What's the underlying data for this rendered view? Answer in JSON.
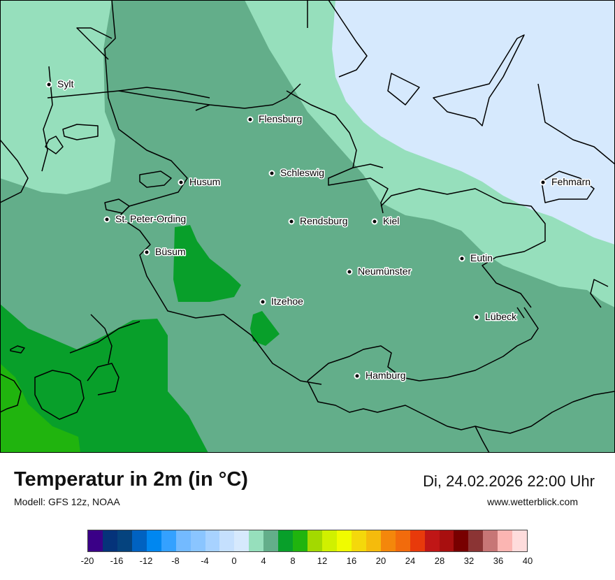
{
  "map": {
    "cities": [
      {
        "name": "Sylt",
        "id": "city-sylt"
      },
      {
        "name": "Flensburg",
        "id": "city-flensburg"
      },
      {
        "name": "Schleswig",
        "id": "city-schleswig"
      },
      {
        "name": "Husum",
        "id": "city-husum"
      },
      {
        "name": "Fehmarn",
        "id": "city-fehmarn"
      },
      {
        "name": "St. Peter-Ording",
        "id": "city-st-peter-ording"
      },
      {
        "name": "Rendsburg",
        "id": "city-rendsburg"
      },
      {
        "name": "Kiel",
        "id": "city-kiel"
      },
      {
        "name": "Büsum",
        "id": "city-buesum"
      },
      {
        "name": "Eutin",
        "id": "city-eutin"
      },
      {
        "name": "Neumünster",
        "id": "city-neumuenster"
      },
      {
        "name": "Itzehoe",
        "id": "city-itzehoe"
      },
      {
        "name": "Lübeck",
        "id": "city-luebeck"
      },
      {
        "name": "Hamburg",
        "id": "city-hamburg"
      }
    ],
    "temperature_zone_colors": {
      "band_0_2": "#d6e9fd",
      "band_2_4": "#96dfbc",
      "band_4_6": "#63ae8a",
      "band_6_8": "#089f2a",
      "band_8_10": "#20b40e"
    }
  },
  "footer": {
    "title": "Temperatur in 2m (in °C)",
    "model": "Modell: GFS 12z, NOAA",
    "datetime": "Di, 24.02.2026 22:00 Uhr",
    "website": "www.wetterblick.com"
  },
  "legend": {
    "colors": [
      "#3a0087",
      "#05337a",
      "#05437e",
      "#0062c1",
      "#0087f0",
      "#34a1ff",
      "#73baff",
      "#8ac5ff",
      "#a7d2ff",
      "#c5e0fe",
      "#d6e9fd",
      "#96dfbc",
      "#63ae8a",
      "#089f2a",
      "#20b40e",
      "#a3d900",
      "#d0f000",
      "#f0fb00",
      "#f4d80b",
      "#f5bb0c",
      "#f4870b",
      "#f26b0c",
      "#e83a0b",
      "#c01616",
      "#a80f0f",
      "#780000",
      "#8b3434",
      "#c77676",
      "#fbb5b2",
      "#fedcdc"
    ],
    "ticks": [
      "-20",
      "-16",
      "-12",
      "-8",
      "-4",
      "0",
      "4",
      "8",
      "12",
      "16",
      "20",
      "24",
      "28",
      "32",
      "36",
      "40"
    ]
  }
}
